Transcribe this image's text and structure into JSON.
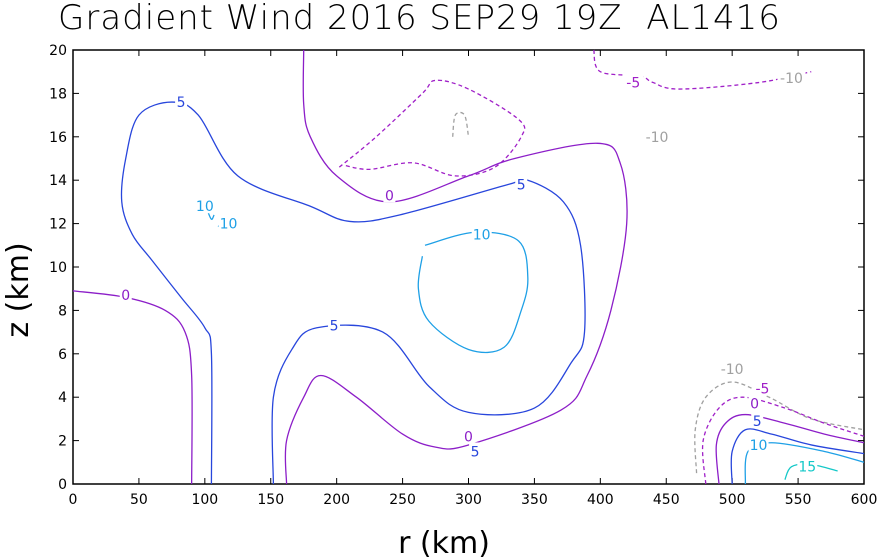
{
  "chart_data": {
    "type": "contour",
    "title": "Gradient Wind 2016 SEP29 19Z  AL1416",
    "xlabel": "r (km)",
    "ylabel": "z (km)",
    "xlim": [
      0,
      600
    ],
    "ylim": [
      0,
      20
    ],
    "x_ticks": [
      "0",
      "50",
      "100",
      "150",
      "200",
      "250",
      "300",
      "350",
      "400",
      "450",
      "500",
      "550",
      "600"
    ],
    "y_ticks": [
      "0",
      "2",
      "4",
      "6",
      "8",
      "10",
      "12",
      "14",
      "16",
      "18",
      "20"
    ],
    "grid": false,
    "legend": "none",
    "levels": [
      {
        "value": -10,
        "color": "#a0a0a0",
        "dashed": true
      },
      {
        "value": -5,
        "color": "#a020c8",
        "dashed": true
      },
      {
        "value": 0,
        "color": "#8c1ec8",
        "dashed": false
      },
      {
        "value": 5,
        "color": "#2846dc",
        "dashed": false
      },
      {
        "value": 10,
        "color": "#1ea0e6",
        "dashed": false
      },
      {
        "value": 15,
        "color": "#14c8c8",
        "dashed": false
      }
    ],
    "contours": [
      {
        "level": -5,
        "points": [
          [
            202,
            14.6
          ],
          [
            230,
            16.0
          ],
          [
            265,
            18.0
          ],
          [
            275,
            18.6
          ],
          [
            300,
            18.2
          ],
          [
            338,
            16.8
          ],
          [
            340,
            16.0
          ],
          [
            320,
            14.6
          ],
          [
            290,
            14.2
          ],
          [
            258,
            14.8
          ],
          [
            225,
            14.5
          ],
          [
            205,
            14.7
          ]
        ]
      },
      {
        "level": -10,
        "points": [
          [
            288,
            16.0
          ],
          [
            290,
            17.0
          ],
          [
            297,
            17.0
          ],
          [
            300,
            16.0
          ]
        ]
      },
      {
        "level": 0,
        "points": [
          [
            175,
            20
          ],
          [
            175,
            17.5
          ],
          [
            180,
            16.0
          ],
          [
            200,
            14.2
          ],
          [
            240,
            13.0
          ],
          [
            300,
            14.2
          ],
          [
            335,
            15.0
          ],
          [
            398,
            15.7
          ],
          [
            415,
            14.8
          ],
          [
            420,
            12.0
          ],
          [
            408,
            8.0
          ],
          [
            390,
            5.0
          ],
          [
            370,
            3.4
          ],
          [
            300,
            1.8
          ],
          [
            275,
            1.7
          ],
          [
            250,
            2.3
          ],
          [
            215,
            4.0
          ],
          [
            188,
            5.0
          ],
          [
            175,
            4.0
          ],
          [
            162,
            2.0
          ],
          [
            162,
            0
          ]
        ]
      },
      {
        "level": 0,
        "points": [
          [
            0,
            8.9
          ],
          [
            40,
            8.6
          ],
          [
            70,
            8.0
          ],
          [
            85,
            7.0
          ],
          [
            90,
            5.0
          ],
          [
            90,
            0
          ]
        ]
      },
      {
        "level": 5,
        "points": [
          [
            105,
            0
          ],
          [
            105,
            6.0
          ],
          [
            100,
            7.2
          ],
          [
            82,
            8.6
          ],
          [
            60,
            10.3
          ],
          [
            45,
            11.5
          ],
          [
            37,
            13.0
          ],
          [
            40,
            15.0
          ],
          [
            50,
            17.0
          ],
          [
            75,
            17.6
          ],
          [
            95,
            17.0
          ],
          [
            125,
            14.2
          ],
          [
            180,
            12.8
          ],
          [
            210,
            12.1
          ],
          [
            248,
            12.4
          ],
          [
            330,
            13.8
          ],
          [
            345,
            14.0
          ],
          [
            372,
            13.0
          ],
          [
            385,
            11.0
          ],
          [
            388,
            7.0
          ],
          [
            378,
            5.6
          ],
          [
            350,
            3.5
          ],
          [
            300,
            3.3
          ],
          [
            270,
            4.5
          ],
          [
            235,
            7.0
          ],
          [
            185,
            7.2
          ],
          [
            166,
            6.2
          ],
          [
            152,
            4.0
          ],
          [
            152,
            0
          ]
        ]
      },
      {
        "level": 10,
        "points": [
          [
            267,
            11.0
          ],
          [
            305,
            11.6
          ],
          [
            338,
            11.2
          ],
          [
            345,
            9.5
          ],
          [
            340,
            8.0
          ],
          [
            327,
            6.3
          ],
          [
            300,
            6.2
          ],
          [
            270,
            7.5
          ],
          [
            262,
            9.0
          ],
          [
            265,
            10.5
          ]
        ]
      },
      {
        "level": 10,
        "points": [
          [
            100,
            13.0
          ],
          [
            102,
            12.6
          ],
          [
            105,
            12.2
          ],
          [
            107,
            12.4
          ]
        ]
      },
      {
        "level": 10,
        "points": [
          [
            110,
            11.9
          ],
          [
            113,
            11.8
          ],
          [
            117,
            12.0
          ]
        ]
      },
      {
        "level": -5,
        "points": [
          [
            395,
            20
          ],
          [
            400,
            19.0
          ],
          [
            430,
            18.8
          ],
          [
            440,
            18.5
          ],
          [
            460,
            18.2
          ],
          [
            520,
            18.5
          ],
          [
            560,
            19.0
          ]
        ]
      },
      {
        "level": -10,
        "points": [
          [
            473,
            0.5
          ],
          [
            472,
            2.5
          ],
          [
            480,
            4.0
          ],
          [
            500,
            4.7
          ],
          [
            528,
            4.0
          ],
          [
            560,
            3.0
          ],
          [
            600,
            2.5
          ]
        ]
      },
      {
        "level": -5,
        "points": [
          [
            480,
            0
          ],
          [
            478,
            2.0
          ],
          [
            490,
            3.5
          ],
          [
            508,
            4.0
          ],
          [
            540,
            3.5
          ],
          [
            570,
            2.8
          ],
          [
            600,
            2.2
          ]
        ]
      },
      {
        "level": 0,
        "points": [
          [
            490,
            0
          ],
          [
            488,
            1.8
          ],
          [
            495,
            2.8
          ],
          [
            510,
            3.2
          ],
          [
            540,
            2.8
          ],
          [
            570,
            2.3
          ],
          [
            600,
            1.9
          ]
        ]
      },
      {
        "level": 5,
        "points": [
          [
            500,
            0
          ],
          [
            500,
            1.5
          ],
          [
            510,
            2.5
          ],
          [
            530,
            2.3
          ],
          [
            560,
            1.8
          ],
          [
            600,
            1.4
          ]
        ]
      },
      {
        "level": 10,
        "points": [
          [
            510,
            0
          ],
          [
            512,
            1.5
          ],
          [
            530,
            1.9
          ],
          [
            570,
            1.5
          ],
          [
            600,
            1.0
          ]
        ]
      },
      {
        "level": 15,
        "points": [
          [
            540,
            0.2
          ],
          [
            545,
            0.8
          ],
          [
            560,
            0.9
          ],
          [
            580,
            0.6
          ]
        ]
      }
    ],
    "contour_labels": [
      {
        "text": "-5",
        "x": 425,
        "y": 18.5
      },
      {
        "text": "-10",
        "x": 443,
        "y": 16.0
      },
      {
        "text": "-10",
        "x": 545,
        "y": 18.7
      },
      {
        "text": "5",
        "x": 82,
        "y": 17.6
      },
      {
        "text": "10",
        "x": 100,
        "y": 12.8
      },
      {
        "text": "10",
        "x": 118,
        "y": 12.0
      },
      {
        "text": "0",
        "x": 240,
        "y": 13.3
      },
      {
        "text": "5",
        "x": 340,
        "y": 13.8
      },
      {
        "text": "10",
        "x": 310,
        "y": 11.5
      },
      {
        "text": "0",
        "x": 40,
        "y": 8.7
      },
      {
        "text": "5",
        "x": 198,
        "y": 7.3
      },
      {
        "text": "0",
        "x": 300,
        "y": 2.2
      },
      {
        "text": "5",
        "x": 305,
        "y": 1.5
      },
      {
        "text": "-10",
        "x": 500,
        "y": 5.3
      },
      {
        "text": "-5",
        "x": 523,
        "y": 4.4
      },
      {
        "text": "0",
        "x": 517,
        "y": 3.7
      },
      {
        "text": "5",
        "x": 519,
        "y": 2.9
      },
      {
        "text": "10",
        "x": 520,
        "y": 1.8
      },
      {
        "text": "15",
        "x": 557,
        "y": 0.8
      }
    ]
  }
}
